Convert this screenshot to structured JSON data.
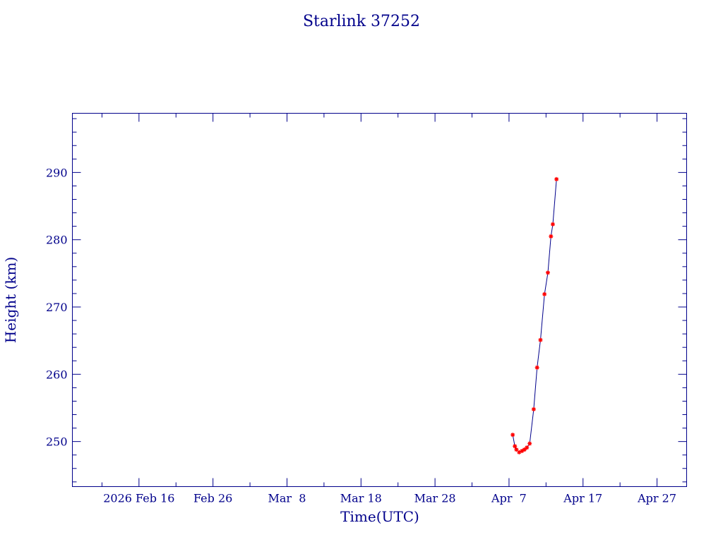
{
  "chart_data": {
    "type": "line",
    "title": "Starlink 37252",
    "xlabel": "Time(UTC)",
    "ylabel": "Height (km)",
    "x_axis_type": "date",
    "xlim": [
      "2026-02-07",
      "2026-05-01"
    ],
    "ylim": [
      243.3,
      298.8
    ],
    "x_ticks": [
      {
        "date": "2026-02-16",
        "label": "2026 Feb 16"
      },
      {
        "date": "2026-02-26",
        "label": "Feb 26"
      },
      {
        "date": "2026-03-08",
        "label": "Mar  8"
      },
      {
        "date": "2026-03-18",
        "label": "Mar 18"
      },
      {
        "date": "2026-03-28",
        "label": "Mar 28"
      },
      {
        "date": "2026-04-07",
        "label": "Apr  7"
      },
      {
        "date": "2026-04-17",
        "label": "Apr 17"
      },
      {
        "date": "2026-04-27",
        "label": "Apr 27"
      }
    ],
    "y_ticks": [
      250,
      260,
      270,
      280,
      290
    ],
    "grid": false,
    "legend": "none",
    "colors": {
      "axes": "#00008b",
      "line": "#00008b",
      "marker": "#ff0000"
    },
    "series": [
      {
        "points": [
          {
            "x": "2026-04-07T12:00",
            "y": 251.0
          },
          {
            "x": "2026-04-07T19:00",
            "y": 249.3
          },
          {
            "x": "2026-04-08T00:00",
            "y": 248.8
          },
          {
            "x": "2026-04-08T09:00",
            "y": 248.4
          },
          {
            "x": "2026-04-08T18:00",
            "y": 248.6
          },
          {
            "x": "2026-04-09T02:00",
            "y": 248.8
          },
          {
            "x": "2026-04-09T10:00",
            "y": 249.1
          },
          {
            "x": "2026-04-09T19:00",
            "y": 249.7
          },
          {
            "x": "2026-04-10T08:00",
            "y": 254.8
          },
          {
            "x": "2026-04-10T19:00",
            "y": 261.0
          },
          {
            "x": "2026-04-11T06:00",
            "y": 265.1
          },
          {
            "x": "2026-04-11T19:00",
            "y": 271.9
          },
          {
            "x": "2026-04-12T06:00",
            "y": 275.1
          },
          {
            "x": "2026-04-12T16:00",
            "y": 280.5
          },
          {
            "x": "2026-04-12T22:00",
            "y": 282.3
          },
          {
            "x": "2026-04-13T10:00",
            "y": 289.0
          }
        ]
      }
    ]
  }
}
